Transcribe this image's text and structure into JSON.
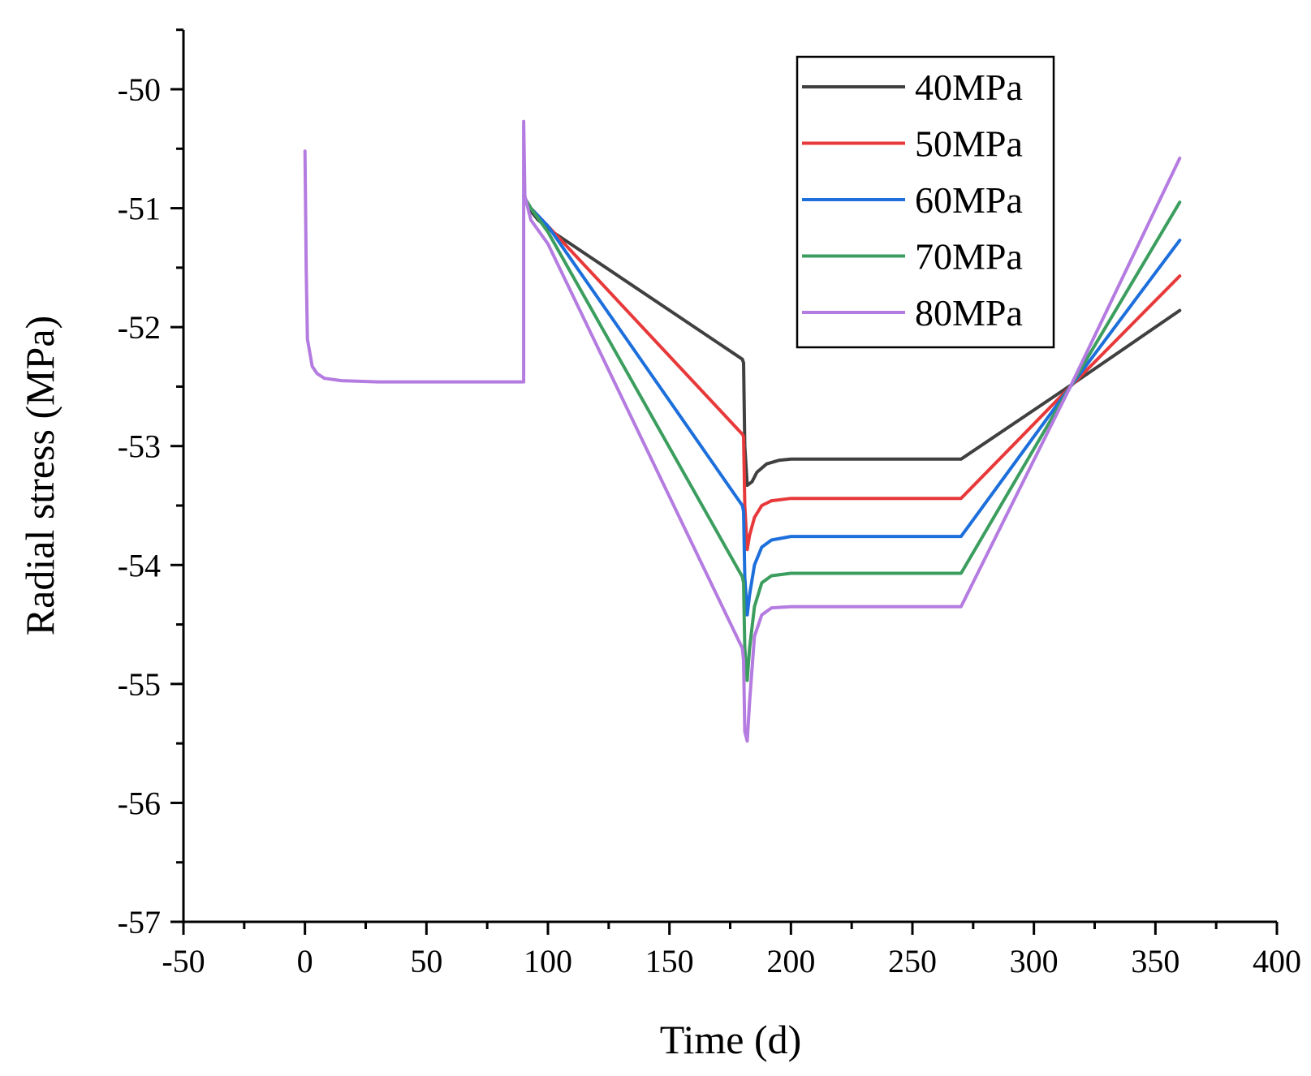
{
  "chart_data": {
    "type": "line",
    "title": "",
    "xlabel": "Time (d)",
    "ylabel": "Radial stress (MPa)",
    "xlim": [
      -50,
      400
    ],
    "ylim": [
      -57,
      -49.5
    ],
    "xticks": [
      -50,
      0,
      50,
      100,
      150,
      200,
      250,
      300,
      350,
      400
    ],
    "xtick_labels": [
      "-50",
      "0",
      "50",
      "100",
      "150",
      "200",
      "250",
      "300",
      "350",
      "400"
    ],
    "yticks": [
      -57,
      -56,
      -55,
      -54,
      -53,
      -52,
      -51,
      -50
    ],
    "ytick_labels": [
      "-57",
      "-56",
      "-55",
      "-54",
      "-53",
      "-52",
      "-51",
      "-50"
    ],
    "grid": false,
    "legend_position": "top-right",
    "series": [
      {
        "name": "40MPa",
        "color": "#404040",
        "points": [
          [
            90,
            -50.9
          ],
          [
            92,
            -51.0
          ],
          [
            96,
            -51.1
          ],
          [
            102,
            -51.2
          ],
          [
            180,
            -52.27
          ],
          [
            180.5,
            -52.3
          ],
          [
            181,
            -53.0
          ],
          [
            182,
            -53.33
          ],
          [
            184,
            -53.3
          ],
          [
            186,
            -53.22
          ],
          [
            190,
            -53.15
          ],
          [
            195,
            -53.12
          ],
          [
            200,
            -53.11
          ],
          [
            270,
            -53.11
          ],
          [
            315,
            -52.49
          ],
          [
            360,
            -51.86
          ]
        ]
      },
      {
        "name": "50MPa",
        "color": "#e8393a",
        "points": [
          [
            90,
            -50.9
          ],
          [
            93,
            -51.0
          ],
          [
            100,
            -51.15
          ],
          [
            180,
            -52.9
          ],
          [
            180.5,
            -52.92
          ],
          [
            181,
            -53.5
          ],
          [
            182,
            -53.87
          ],
          [
            183,
            -53.75
          ],
          [
            185,
            -53.6
          ],
          [
            188,
            -53.5
          ],
          [
            192,
            -53.46
          ],
          [
            200,
            -53.44
          ],
          [
            270,
            -53.44
          ],
          [
            315,
            -52.5
          ],
          [
            360,
            -51.57
          ]
        ]
      },
      {
        "name": "60MPa",
        "color": "#1d6fdc",
        "points": [
          [
            90,
            -50.9
          ],
          [
            93,
            -51.0
          ],
          [
            100,
            -51.15
          ],
          [
            180,
            -53.5
          ],
          [
            180.5,
            -53.55
          ],
          [
            181,
            -54.1
          ],
          [
            182,
            -54.42
          ],
          [
            183,
            -54.25
          ],
          [
            185,
            -54.0
          ],
          [
            188,
            -53.85
          ],
          [
            192,
            -53.79
          ],
          [
            200,
            -53.76
          ],
          [
            270,
            -53.76
          ],
          [
            315,
            -52.5
          ],
          [
            360,
            -51.27
          ]
        ]
      },
      {
        "name": "70MPa",
        "color": "#3c9e5e",
        "points": [
          [
            90,
            -50.9
          ],
          [
            93,
            -51.0
          ],
          [
            100,
            -51.2
          ],
          [
            180,
            -54.1
          ],
          [
            180.5,
            -54.15
          ],
          [
            181,
            -54.7
          ],
          [
            182,
            -54.97
          ],
          [
            183,
            -54.7
          ],
          [
            185,
            -54.35
          ],
          [
            188,
            -54.15
          ],
          [
            192,
            -54.09
          ],
          [
            200,
            -54.07
          ],
          [
            270,
            -54.07
          ],
          [
            315,
            -52.5
          ],
          [
            360,
            -50.95
          ]
        ]
      },
      {
        "name": "80MPa",
        "color": "#b47be0",
        "points": [
          [
            0,
            -50.52
          ],
          [
            0.5,
            -51.5
          ],
          [
            1,
            -52.1
          ],
          [
            3,
            -52.33
          ],
          [
            5,
            -52.39
          ],
          [
            8,
            -52.43
          ],
          [
            15,
            -52.45
          ],
          [
            30,
            -52.46
          ],
          [
            90,
            -52.46
          ],
          [
            90,
            -50.27
          ],
          [
            90.5,
            -50.9
          ],
          [
            93,
            -51.1
          ],
          [
            100,
            -51.3
          ],
          [
            180,
            -54.7
          ],
          [
            180.5,
            -54.8
          ],
          [
            181,
            -55.4
          ],
          [
            182,
            -55.48
          ],
          [
            183,
            -55.15
          ],
          [
            185,
            -54.6
          ],
          [
            188,
            -54.42
          ],
          [
            192,
            -54.36
          ],
          [
            200,
            -54.35
          ],
          [
            270,
            -54.35
          ],
          [
            315,
            -52.5
          ],
          [
            360,
            -50.58
          ]
        ]
      }
    ]
  }
}
